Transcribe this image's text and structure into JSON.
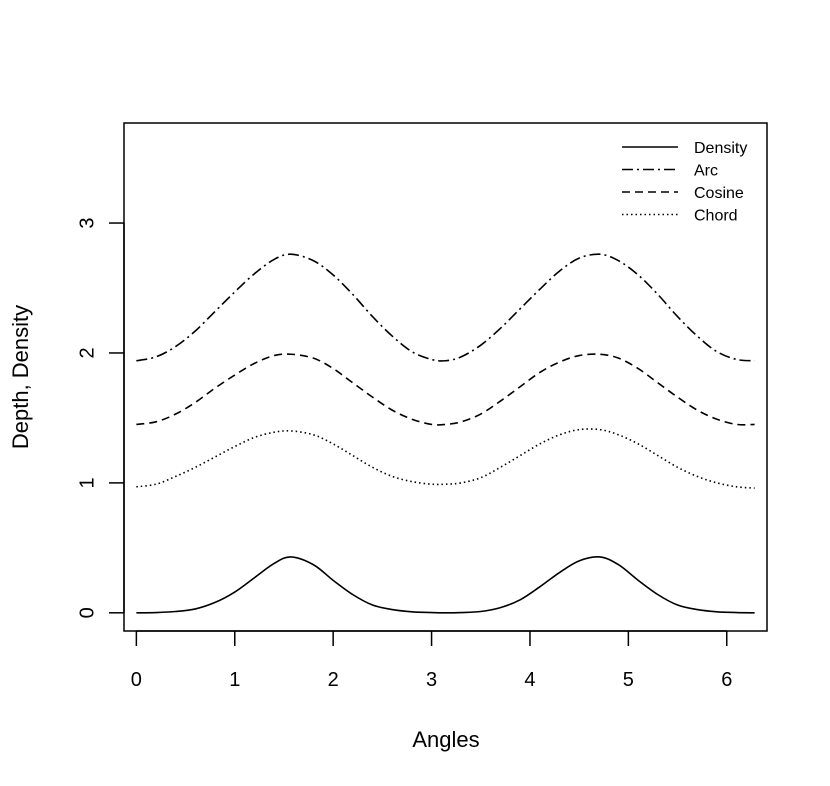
{
  "chart_data": {
    "type": "line",
    "title": "",
    "xlabel": "Angles",
    "ylabel": "Depth, Density",
    "xlim": [
      -0.1257,
      6.4089
    ],
    "ylim": [
      -0.14,
      3.77
    ],
    "x_ticks": [
      0,
      1,
      2,
      3,
      4,
      5,
      6
    ],
    "y_ticks": [
      0,
      1,
      2,
      3
    ],
    "x_tick_labels": [
      "0",
      "1",
      "2",
      "3",
      "4",
      "5",
      "6"
    ],
    "y_tick_labels": [
      "0",
      "1",
      "2",
      "3"
    ],
    "grid": false,
    "legend_position": "top-right",
    "series": [
      {
        "name": "Density",
        "line_style": "solid",
        "x": [
          0,
          0.2,
          0.4,
          0.6,
          0.8,
          1.0,
          1.2,
          1.4,
          1.571,
          1.8,
          2.0,
          2.2,
          2.4,
          2.6,
          2.8,
          3.0,
          3.142,
          3.3,
          3.5,
          3.7,
          3.9,
          4.1,
          4.3,
          4.5,
          4.712,
          4.9,
          5.1,
          5.3,
          5.5,
          5.7,
          5.9,
          6.1,
          6.283
        ],
        "values": [
          0.0,
          0.002,
          0.01,
          0.03,
          0.08,
          0.16,
          0.27,
          0.38,
          0.43,
          0.37,
          0.25,
          0.14,
          0.06,
          0.025,
          0.008,
          0.002,
          0.0,
          0.002,
          0.01,
          0.04,
          0.1,
          0.2,
          0.31,
          0.4,
          0.43,
          0.37,
          0.25,
          0.14,
          0.06,
          0.025,
          0.008,
          0.002,
          0.0
        ]
      },
      {
        "name": "Arc",
        "line_style": "dashdot",
        "x": [
          0,
          0.2,
          0.4,
          0.6,
          0.8,
          1.0,
          1.2,
          1.4,
          1.571,
          1.8,
          2.0,
          2.2,
          2.4,
          2.6,
          2.8,
          3.0,
          3.142,
          3.3,
          3.5,
          3.7,
          3.9,
          4.1,
          4.3,
          4.5,
          4.712,
          4.9,
          5.1,
          5.3,
          5.5,
          5.7,
          5.9,
          6.1,
          6.283
        ],
        "values": [
          1.94,
          1.97,
          2.05,
          2.17,
          2.32,
          2.47,
          2.61,
          2.72,
          2.76,
          2.71,
          2.6,
          2.45,
          2.28,
          2.13,
          2.01,
          1.95,
          1.94,
          1.97,
          2.06,
          2.19,
          2.34,
          2.49,
          2.63,
          2.73,
          2.76,
          2.71,
          2.6,
          2.45,
          2.28,
          2.13,
          2.01,
          1.95,
          1.94
        ]
      },
      {
        "name": "Cosine",
        "line_style": "dashed",
        "x": [
          0,
          0.2,
          0.4,
          0.6,
          0.8,
          1.0,
          1.2,
          1.4,
          1.571,
          1.8,
          2.0,
          2.2,
          2.4,
          2.6,
          2.8,
          3.0,
          3.142,
          3.3,
          3.5,
          3.7,
          3.9,
          4.1,
          4.3,
          4.5,
          4.712,
          4.9,
          5.1,
          5.3,
          5.5,
          5.7,
          5.9,
          6.1,
          6.283
        ],
        "values": [
          1.45,
          1.47,
          1.53,
          1.62,
          1.73,
          1.83,
          1.92,
          1.98,
          1.99,
          1.96,
          1.88,
          1.77,
          1.66,
          1.56,
          1.49,
          1.45,
          1.45,
          1.47,
          1.53,
          1.63,
          1.74,
          1.85,
          1.93,
          1.98,
          1.99,
          1.96,
          1.88,
          1.77,
          1.66,
          1.56,
          1.49,
          1.45,
          1.45
        ]
      },
      {
        "name": "Chord",
        "line_style": "dotted",
        "x": [
          0,
          0.2,
          0.4,
          0.6,
          0.8,
          1.0,
          1.2,
          1.4,
          1.571,
          1.8,
          2.0,
          2.2,
          2.4,
          2.6,
          2.8,
          3.0,
          3.142,
          3.3,
          3.5,
          3.7,
          3.9,
          4.1,
          4.3,
          4.5,
          4.712,
          4.9,
          5.1,
          5.3,
          5.5,
          5.7,
          5.9,
          6.1,
          6.283
        ],
        "values": [
          0.97,
          0.99,
          1.05,
          1.12,
          1.2,
          1.28,
          1.35,
          1.39,
          1.4,
          1.37,
          1.3,
          1.21,
          1.12,
          1.05,
          1.01,
          0.99,
          0.99,
          1.0,
          1.04,
          1.12,
          1.21,
          1.3,
          1.37,
          1.41,
          1.41,
          1.37,
          1.3,
          1.21,
          1.12,
          1.05,
          1.0,
          0.97,
          0.96
        ]
      }
    ]
  }
}
